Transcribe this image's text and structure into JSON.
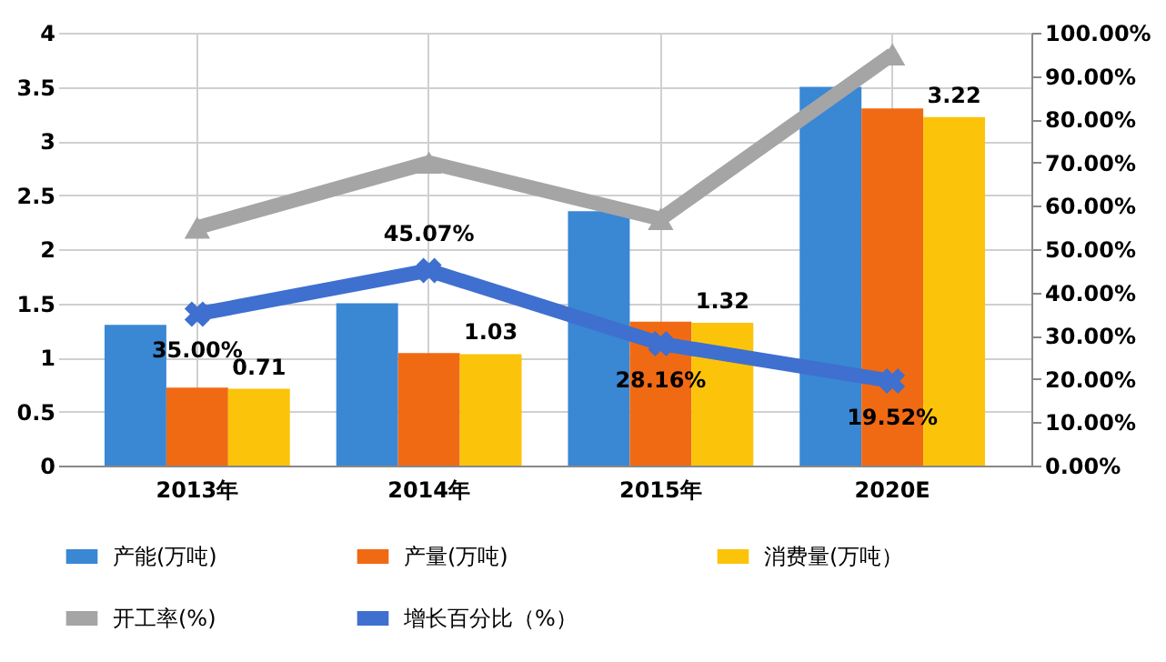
{
  "chart_data": {
    "type": "bar",
    "categories": [
      "2013年",
      "2014年",
      "2015年",
      "2020E"
    ],
    "series": [
      {
        "name": "产能(万吨)",
        "color": "#3a87d4",
        "values": [
          1.3,
          1.5,
          2.35,
          3.5
        ]
      },
      {
        "name": "产量(万吨)",
        "color": "#f06a14",
        "values": [
          0.72,
          1.04,
          1.33,
          3.3
        ]
      },
      {
        "name": "消费量(万吨）",
        "color": "#fbc40a",
        "values": [
          0.71,
          1.03,
          1.32,
          3.22
        ],
        "value_labels": [
          "0.71",
          "1.03",
          "1.32",
          "3.22"
        ]
      },
      {
        "name": "开工率(%)",
        "type": "line",
        "axis": "y2",
        "color": "#a5a5a5",
        "marker": "triangle",
        "values": [
          55,
          70,
          57,
          95
        ]
      },
      {
        "name": "增长百分比（%）",
        "type": "line",
        "axis": "y2",
        "color": "#3f6fcf",
        "marker": "cross",
        "values": [
          35.0,
          45.07,
          28.16,
          19.52
        ],
        "value_labels": [
          "35.00%",
          "45.07%",
          "28.16%",
          "19.52%"
        ]
      }
    ],
    "ylim": [
      0,
      4
    ],
    "yticks": [
      0,
      0.5,
      1,
      1.5,
      2,
      2.5,
      3,
      3.5,
      4
    ],
    "y2lim": [
      0,
      100
    ],
    "y2ticks": [
      {
        "value": 0,
        "label": "0.00%"
      },
      {
        "value": 10,
        "label": "10.00%"
      },
      {
        "value": 20,
        "label": "20.00%"
      },
      {
        "value": 30,
        "label": "30.00%"
      },
      {
        "value": 40,
        "label": "40.00%"
      },
      {
        "value": 50,
        "label": "50.00%"
      },
      {
        "value": 60,
        "label": "60.00%"
      },
      {
        "value": 70,
        "label": "70.00%"
      },
      {
        "value": 80,
        "label": "80.00%"
      },
      {
        "value": 90,
        "label": "90.00%"
      },
      {
        "value": 100,
        "label": "100.00%"
      }
    ],
    "grid": true,
    "legend": "bottom"
  }
}
